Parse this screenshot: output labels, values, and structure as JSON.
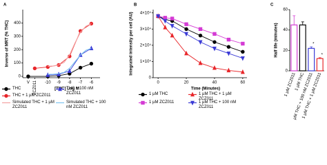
{
  "chart_data": [
    {
      "type": "line",
      "title": "A",
      "x_label": "[THC] Log M",
      "y_label": "Inverse of MRT (% THC)",
      "xlim": [
        -12.3,
        -5.2
      ],
      "xticks": [
        {
          "value": -11.8,
          "label": "V"
        },
        {
          "value": -11.2,
          "label": "ZCZ011"
        },
        -10,
        -9,
        -8,
        -7,
        -6
      ],
      "ylim": [
        -10,
        500
      ],
      "yticks": [
        0,
        100,
        200,
        300,
        400
      ],
      "series": [
        {
          "name": "THC",
          "color": "#000000",
          "marker": "circle",
          "x": [
            -11.8,
            -10,
            -9,
            -8,
            -7,
            -6
          ],
          "values": [
            0,
            0,
            5,
            20,
            65,
            95
          ]
        },
        {
          "name": "THC + 1 µM ZCZ011",
          "color": "#e8262a",
          "marker": "circle",
          "x": [
            -11.2,
            -10,
            -9,
            -8,
            -7,
            -6
          ],
          "values": [
            60,
            70,
            85,
            150,
            340,
            395
          ]
        },
        {
          "name": "THC + 100 nM ZCZ011",
          "color": "#3b3bd6",
          "marker": "triangle",
          "x": [
            -10,
            -9,
            -8,
            -7,
            -6
          ],
          "values": [
            10,
            15,
            40,
            160,
            210
          ]
        },
        {
          "name": "Simulated THC + 1 µM ZCZ011",
          "color": "#f4a0a0",
          "marker": null,
          "x": [
            -10,
            -9.5,
            -9,
            -8.5,
            -8,
            -7.5,
            -7,
            -6.5,
            -6
          ],
          "values": [
            75,
            78,
            85,
            105,
            160,
            250,
            330,
            375,
            395
          ]
        },
        {
          "name": "Simulated THC + 100 nM ZCZ011",
          "color": "#7ec4f0",
          "marker": null,
          "x": [
            -10,
            -9.5,
            -9,
            -8.5,
            -8,
            -7.5,
            -7,
            -6.5,
            -6
          ],
          "values": [
            15,
            16,
            20,
            30,
            60,
            110,
            160,
            195,
            210
          ]
        }
      ]
    },
    {
      "type": "line",
      "title": "B",
      "x_label": "Time (Minutes)",
      "y_label": "Integrated intensity per cell (AU)",
      "xlim": [
        -3.5,
        63
      ],
      "xticks": [
        0,
        20,
        40,
        60
      ],
      "ylim": [
        0,
        42000
      ],
      "yticks": [
        0,
        {
          "value": 10000,
          "label": "1×10⁴"
        },
        {
          "value": 20000,
          "label": "2×10⁴"
        },
        {
          "value": 30000,
          "label": "3×10⁴"
        },
        {
          "value": 40000,
          "label": "4×10⁴"
        }
      ],
      "series": [
        {
          "name": "1 µM THC",
          "color": "#000000",
          "marker": "circle",
          "x": [
            0,
            5,
            10,
            20,
            30,
            40,
            50,
            60
          ],
          "values": [
            38000,
            36000,
            35000,
            30000,
            26000,
            22000,
            19000,
            16000
          ]
        },
        {
          "name": "1 µM ZCZ011",
          "color": "#d43bd4",
          "marker": "square",
          "x": [
            0,
            5,
            10,
            20,
            30,
            40,
            50,
            60
          ],
          "values": [
            38000,
            37000,
            36500,
            33000,
            30000,
            27000,
            23500,
            21000
          ]
        },
        {
          "name": "1 µM THC + 1 µM ZCZ011",
          "color": "#e8262a",
          "marker": "triangle",
          "x": [
            0,
            5,
            10,
            20,
            30,
            40,
            50,
            60
          ],
          "values": [
            38000,
            31000,
            26000,
            15000,
            9000,
            6000,
            4500,
            3500
          ]
        },
        {
          "name": "1 µM THC + 100 nM ZCZ011",
          "color": "#3b3bd6",
          "marker": "triangle-down",
          "x": [
            0,
            5,
            10,
            20,
            30,
            40,
            50,
            60
          ],
          "values": [
            38000,
            35000,
            32000,
            27000,
            22000,
            18000,
            15000,
            12000
          ]
        }
      ]
    },
    {
      "type": "bar",
      "title": "C",
      "y_label": "Half life (minutes)",
      "categories": [
        "1 µM ZCZ011",
        "1 µM THC",
        "1 µM THC + 100 nM ZCZ011",
        "1 µM THC + 1 µM ZCZ011"
      ],
      "values": [
        45,
        45,
        22,
        12
      ],
      "errors": [
        9,
        3,
        1.5,
        1
      ],
      "colors": [
        "#d43bd4",
        "#000000",
        "#3b3bd6",
        "#e8262a"
      ],
      "significance": [
        null,
        null,
        "*",
        "*"
      ],
      "ylim": [
        0,
        60
      ],
      "yticks": [
        0,
        20,
        40,
        60
      ]
    }
  ]
}
